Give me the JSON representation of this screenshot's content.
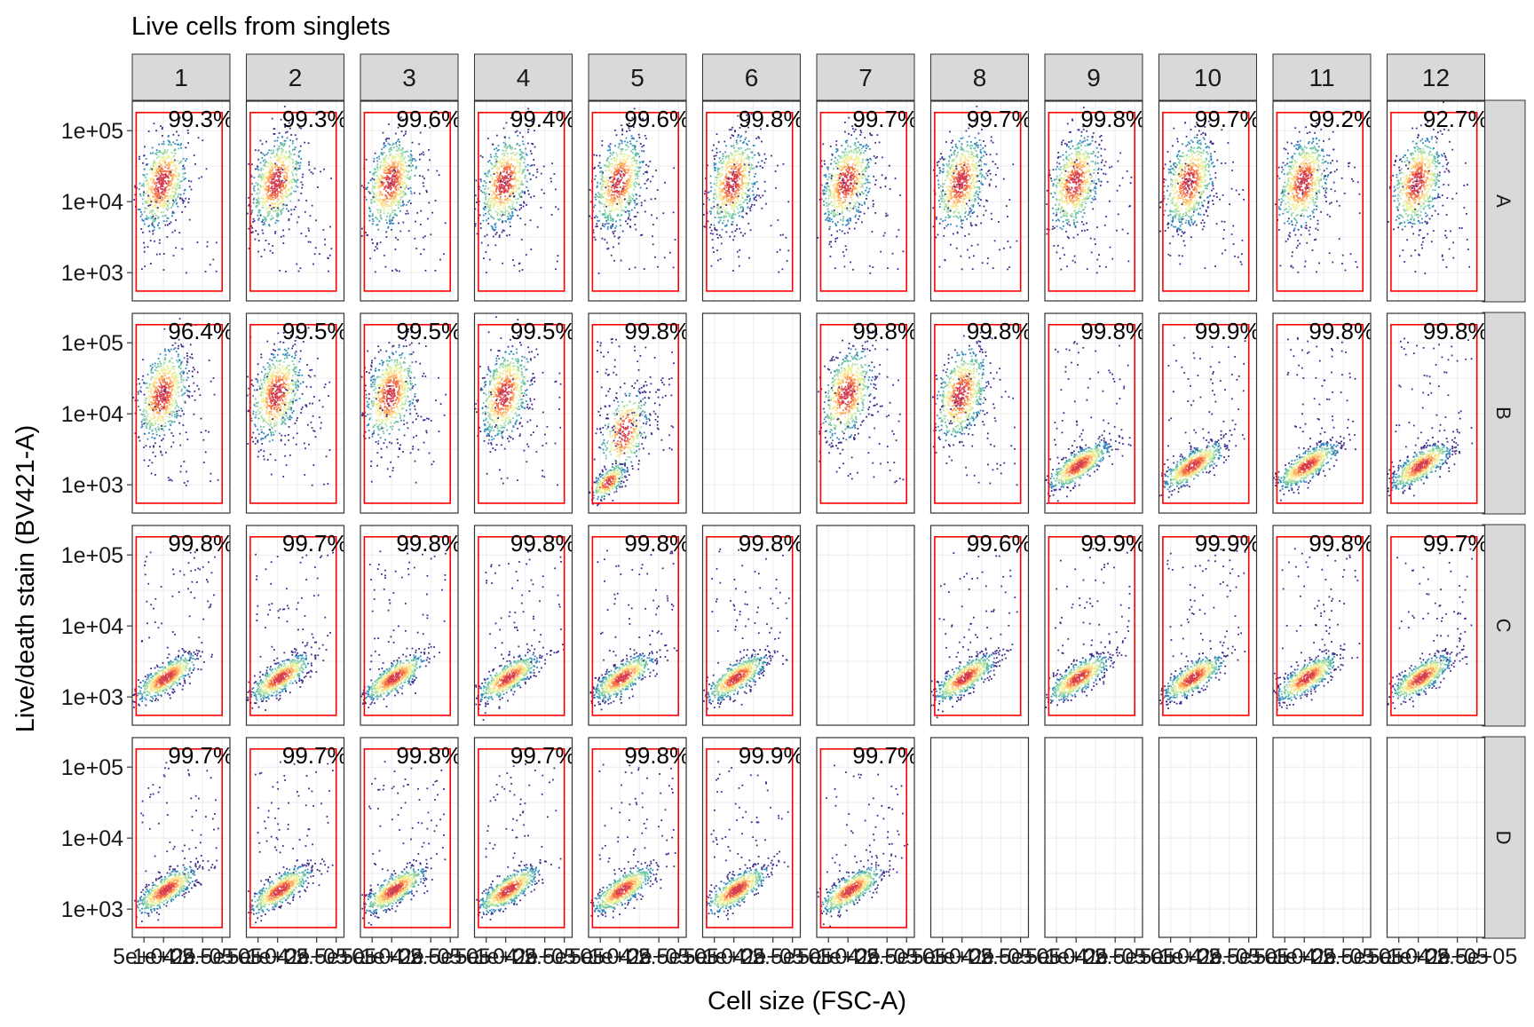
{
  "chart_data": {
    "type": "scatter",
    "subtype": "faceted flow-cytometry density scatter grid",
    "title": "Live cells from singlets",
    "xlabel": "Cell size (FSC-A)",
    "ylabel": "Live/death stain (BV421-A)",
    "x_scale": "linear",
    "y_scale": "log",
    "x_tick_labels": [
      "5e+04",
      "1e+05",
      "2e+05",
      "2.5e+05"
    ],
    "y_tick_labels": [
      "1e+03",
      "1e+04",
      "1e+05"
    ],
    "y_ticks": [
      1000,
      10000,
      100000
    ],
    "ylim": [
      400,
      260000
    ],
    "xlim": [
      20000,
      270000
    ],
    "gate": {
      "color": "#ff0000",
      "x_range": [
        30000,
        250000
      ],
      "y_range": [
        550,
        180000
      ]
    },
    "column_strips": [
      "1",
      "2",
      "3",
      "4",
      "5",
      "6",
      "7",
      "8",
      "9",
      "10",
      "11",
      "12"
    ],
    "row_strips": [
      "A",
      "B",
      "C",
      "D"
    ],
    "palette": [
      "#3d2a8a",
      "#3288bd",
      "#66c2a5",
      "#abdda4",
      "#e6f598",
      "#fee08b",
      "#fdae61",
      "#f46d43",
      "#d53e4f"
    ],
    "grid": true,
    "panels": {
      "A": [
        {
          "col": "1",
          "pct": "99.3%",
          "pop": "high"
        },
        {
          "col": "2",
          "pct": "99.3%",
          "pop": "high"
        },
        {
          "col": "3",
          "pct": "99.6%",
          "pop": "high"
        },
        {
          "col": "4",
          "pct": "99.4%",
          "pop": "high"
        },
        {
          "col": "5",
          "pct": "99.6%",
          "pop": "high"
        },
        {
          "col": "6",
          "pct": "99.8%",
          "pop": "high"
        },
        {
          "col": "7",
          "pct": "99.7%",
          "pop": "high"
        },
        {
          "col": "8",
          "pct": "99.7%",
          "pop": "high"
        },
        {
          "col": "9",
          "pct": "99.8%",
          "pop": "high"
        },
        {
          "col": "10",
          "pct": "99.7%",
          "pop": "high"
        },
        {
          "col": "11",
          "pct": "99.2%",
          "pop": "high"
        },
        {
          "col": "12",
          "pct": "92.7%",
          "pop": "high"
        }
      ],
      "B": [
        {
          "col": "1",
          "pct": "96.4%",
          "pop": "high"
        },
        {
          "col": "2",
          "pct": "99.5%",
          "pop": "high"
        },
        {
          "col": "3",
          "pct": "99.5%",
          "pop": "high"
        },
        {
          "col": "4",
          "pct": "99.5%",
          "pop": "high"
        },
        {
          "col": "5",
          "pct": "99.8%",
          "pop": "mixed"
        },
        {
          "col": "6",
          "pct": "",
          "pop": "empty"
        },
        {
          "col": "7",
          "pct": "99.8%",
          "pop": "high"
        },
        {
          "col": "8",
          "pct": "99.8%",
          "pop": "high"
        },
        {
          "col": "9",
          "pct": "99.8%",
          "pop": "low"
        },
        {
          "col": "10",
          "pct": "99.9%",
          "pop": "low"
        },
        {
          "col": "11",
          "pct": "99.8%",
          "pop": "low"
        },
        {
          "col": "12",
          "pct": "99.8%",
          "pop": "low"
        }
      ],
      "C": [
        {
          "col": "1",
          "pct": "99.8%",
          "pop": "low"
        },
        {
          "col": "2",
          "pct": "99.7%",
          "pop": "low"
        },
        {
          "col": "3",
          "pct": "99.8%",
          "pop": "low"
        },
        {
          "col": "4",
          "pct": "99.8%",
          "pop": "low"
        },
        {
          "col": "5",
          "pct": "99.8%",
          "pop": "low"
        },
        {
          "col": "6",
          "pct": "99.8%",
          "pop": "low"
        },
        {
          "col": "7",
          "pct": "",
          "pop": "empty"
        },
        {
          "col": "8",
          "pct": "99.6%",
          "pop": "low"
        },
        {
          "col": "9",
          "pct": "99.9%",
          "pop": "low"
        },
        {
          "col": "10",
          "pct": "99.9%",
          "pop": "low"
        },
        {
          "col": "11",
          "pct": "99.8%",
          "pop": "low"
        },
        {
          "col": "12",
          "pct": "99.7%",
          "pop": "low"
        }
      ],
      "D": [
        {
          "col": "1",
          "pct": "99.7%",
          "pop": "low"
        },
        {
          "col": "2",
          "pct": "99.7%",
          "pop": "low"
        },
        {
          "col": "3",
          "pct": "99.8%",
          "pop": "low"
        },
        {
          "col": "4",
          "pct": "99.7%",
          "pop": "low"
        },
        {
          "col": "5",
          "pct": "99.8%",
          "pop": "low"
        },
        {
          "col": "6",
          "pct": "99.9%",
          "pop": "low"
        },
        {
          "col": "7",
          "pct": "99.7%",
          "pop": "low"
        },
        {
          "col": "8",
          "pct": "",
          "pop": "empty"
        },
        {
          "col": "9",
          "pct": "",
          "pop": "empty"
        },
        {
          "col": "10",
          "pct": "",
          "pop": "empty"
        },
        {
          "col": "11",
          "pct": "",
          "pop": "empty"
        },
        {
          "col": "12",
          "pct": "",
          "pop": "empty"
        }
      ]
    }
  }
}
